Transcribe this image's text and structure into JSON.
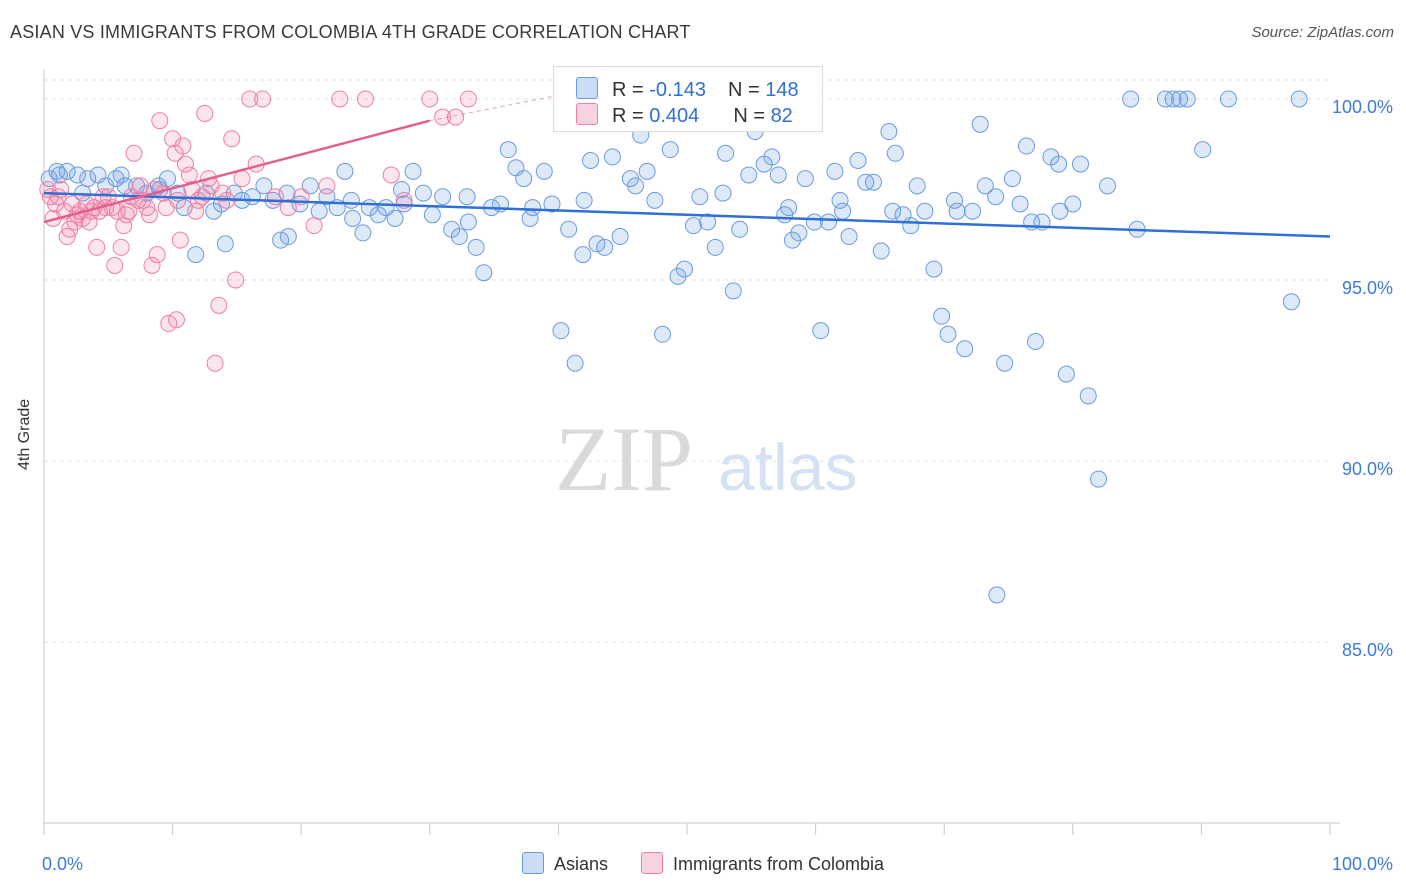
{
  "header": {
    "title": "ASIAN VS IMMIGRANTS FROM COLOMBIA 4TH GRADE CORRELATION CHART",
    "source": "Source: ZipAtlas.com"
  },
  "legend_box": {
    "rows": [
      {
        "r_label": "R = ",
        "r_value": "-0.143",
        "n_label": "N = ",
        "n_value": "148"
      },
      {
        "r_label": "R = ",
        "r_value": "0.404",
        "n_label": "N = ",
        "n_value": "82"
      }
    ]
  },
  "colors": {
    "asians": "#6a9be0",
    "asians_fill": "rgba(106,155,224,0.22)",
    "colombia": "#ee7fa5",
    "colombia_fill": "rgba(238,127,165,0.20)",
    "asians_line": "#2f6fd6",
    "colombia_line": "#e35d8d",
    "tick_text": "#3d7bd9"
  },
  "chart_data": {
    "type": "scatter",
    "title": "ASIAN VS IMMIGRANTS FROM COLOMBIA 4TH GRADE CORRELATION CHART",
    "xlabel": "",
    "ylabel": "4th Grade",
    "xlim": [
      0,
      100
    ],
    "ylim": [
      80,
      100.8
    ],
    "x_tick_labels": [
      "0.0%",
      "100.0%"
    ],
    "y_ticks": [
      85,
      90,
      95,
      100
    ],
    "y_tick_labels": [
      "85.0%",
      "90.0%",
      "95.0%",
      "100.0%"
    ],
    "grid": true,
    "legend": "bottom-center",
    "watermark": "ZIPatlas",
    "series": [
      {
        "name": "Asians",
        "r": -0.143,
        "n": 148,
        "trend": {
          "x": [
            0,
            100
          ],
          "y": [
            97.4,
            96.2
          ]
        },
        "points": [
          [
            0.4,
            97.8
          ],
          [
            1.2,
            97.9
          ],
          [
            1.8,
            98.0
          ],
          [
            2.6,
            97.9
          ],
          [
            3.4,
            97.8
          ],
          [
            4.2,
            97.9
          ],
          [
            4.8,
            97.6
          ],
          [
            5.6,
            97.8
          ],
          [
            6.3,
            97.6
          ],
          [
            7.2,
            97.6
          ],
          [
            8.0,
            97.4
          ],
          [
            8.9,
            97.6
          ],
          [
            9.6,
            97.8
          ],
          [
            10.4,
            97.4
          ],
          [
            10.9,
            97.0
          ],
          [
            11.8,
            95.7
          ],
          [
            12.6,
            97.4
          ],
          [
            13.2,
            96.9
          ],
          [
            14.1,
            96.0
          ],
          [
            14.8,
            97.4
          ],
          [
            15.4,
            97.2
          ],
          [
            16.2,
            97.3
          ],
          [
            17.1,
            97.6
          ],
          [
            17.8,
            97.2
          ],
          [
            18.4,
            96.1
          ],
          [
            19.0,
            96.2
          ],
          [
            19.9,
            97.1
          ],
          [
            20.7,
            97.6
          ],
          [
            21.4,
            96.9
          ],
          [
            22.0,
            97.3
          ],
          [
            22.8,
            97.0
          ],
          [
            23.4,
            98.0
          ],
          [
            24.0,
            96.7
          ],
          [
            24.8,
            96.3
          ],
          [
            25.3,
            97.0
          ],
          [
            26.0,
            96.8
          ],
          [
            26.6,
            97.0
          ],
          [
            27.3,
            96.7
          ],
          [
            28.0,
            97.1
          ],
          [
            28.7,
            98.0
          ],
          [
            29.5,
            97.4
          ],
          [
            30.2,
            96.8
          ],
          [
            31.0,
            97.3
          ],
          [
            31.7,
            96.4
          ],
          [
            32.3,
            96.2
          ],
          [
            32.9,
            97.3
          ],
          [
            33.6,
            95.9
          ],
          [
            34.2,
            95.2
          ],
          [
            34.8,
            97.0
          ],
          [
            35.5,
            97.1
          ],
          [
            36.1,
            98.6
          ],
          [
            36.7,
            98.1
          ],
          [
            37.3,
            97.8
          ],
          [
            38.0,
            97.0
          ],
          [
            38.9,
            98.0
          ],
          [
            39.5,
            97.1
          ],
          [
            40.2,
            93.6
          ],
          [
            40.8,
            96.4
          ],
          [
            41.3,
            92.7
          ],
          [
            41.9,
            95.7
          ],
          [
            42.5,
            98.3
          ],
          [
            43.0,
            96.0
          ],
          [
            43.6,
            95.9
          ],
          [
            44.2,
            98.4
          ],
          [
            44.8,
            96.2
          ],
          [
            45.6,
            97.8
          ],
          [
            46.4,
            99.0
          ],
          [
            46.9,
            98.0
          ],
          [
            47.5,
            97.2
          ],
          [
            48.1,
            93.5
          ],
          [
            48.7,
            98.6
          ],
          [
            49.3,
            95.1
          ],
          [
            49.8,
            95.3
          ],
          [
            50.5,
            96.5
          ],
          [
            51.0,
            97.3
          ],
          [
            51.6,
            96.6
          ],
          [
            52.2,
            95.9
          ],
          [
            53.0,
            98.5
          ],
          [
            53.6,
            94.7
          ],
          [
            54.1,
            96.4
          ],
          [
            54.8,
            97.9
          ],
          [
            55.3,
            99.1
          ],
          [
            56.0,
            98.2
          ],
          [
            56.6,
            98.4
          ],
          [
            57.1,
            97.9
          ],
          [
            57.6,
            96.8
          ],
          [
            58.2,
            96.1
          ],
          [
            58.7,
            96.3
          ],
          [
            59.2,
            97.8
          ],
          [
            59.9,
            96.6
          ],
          [
            60.4,
            93.6
          ],
          [
            61.0,
            96.6
          ],
          [
            61.5,
            98.0
          ],
          [
            62.1,
            96.9
          ],
          [
            62.6,
            96.2
          ],
          [
            63.3,
            98.3
          ],
          [
            63.9,
            97.7
          ],
          [
            64.5,
            97.7
          ],
          [
            65.1,
            95.8
          ],
          [
            65.7,
            99.1
          ],
          [
            66.2,
            98.5
          ],
          [
            66.8,
            96.8
          ],
          [
            67.4,
            96.5
          ],
          [
            67.9,
            97.6
          ],
          [
            68.5,
            96.9
          ],
          [
            69.2,
            95.3
          ],
          [
            69.8,
            94.0
          ],
          [
            70.3,
            93.5
          ],
          [
            71.0,
            96.9
          ],
          [
            71.6,
            93.1
          ],
          [
            72.2,
            96.9
          ],
          [
            72.8,
            99.3
          ],
          [
            73.2,
            97.6
          ],
          [
            74.1,
            86.3
          ],
          [
            74.7,
            92.7
          ],
          [
            75.3,
            97.8
          ],
          [
            75.9,
            97.1
          ],
          [
            76.4,
            98.7
          ],
          [
            77.1,
            93.3
          ],
          [
            77.6,
            96.6
          ],
          [
            78.3,
            98.4
          ],
          [
            78.9,
            98.2
          ],
          [
            79.5,
            92.4
          ],
          [
            80.0,
            97.1
          ],
          [
            80.6,
            98.2
          ],
          [
            81.2,
            91.8
          ],
          [
            82.0,
            89.5
          ],
          [
            82.7,
            97.6
          ],
          [
            84.5,
            100.0
          ],
          [
            87.2,
            100.0
          ],
          [
            87.8,
            100.0
          ],
          [
            88.3,
            100.0
          ],
          [
            88.9,
            100.0
          ],
          [
            90.1,
            98.6
          ],
          [
            92.1,
            100.0
          ],
          [
            97.0,
            94.4
          ],
          [
            97.6,
            100.0
          ],
          [
            1.0,
            98.0
          ],
          [
            3.0,
            97.4
          ],
          [
            6.0,
            97.9
          ],
          [
            9.0,
            97.5
          ],
          [
            13.8,
            97.1
          ],
          [
            18.9,
            97.4
          ],
          [
            23.9,
            97.2
          ],
          [
            27.8,
            97.5
          ],
          [
            33.0,
            96.6
          ],
          [
            37.8,
            96.7
          ],
          [
            42.0,
            97.2
          ],
          [
            46.0,
            97.6
          ],
          [
            52.8,
            97.4
          ],
          [
            57.9,
            97.0
          ],
          [
            61.9,
            97.2
          ],
          [
            66.0,
            96.9
          ],
          [
            70.8,
            97.2
          ],
          [
            74.0,
            97.3
          ],
          [
            76.8,
            96.6
          ],
          [
            79.0,
            96.9
          ],
          [
            85.0,
            96.4
          ]
        ]
      },
      {
        "name": "Immigrants from Colombia",
        "r": 0.404,
        "n": 82,
        "trend": {
          "x": [
            0,
            30,
            40
          ],
          "y": [
            96.6,
            99.4,
            100.1
          ]
        },
        "points": [
          [
            0.3,
            97.5
          ],
          [
            0.5,
            97.3
          ],
          [
            0.7,
            96.7
          ],
          [
            0.9,
            97.1
          ],
          [
            1.1,
            97.3
          ],
          [
            1.3,
            97.5
          ],
          [
            1.6,
            96.9
          ],
          [
            1.8,
            96.2
          ],
          [
            2.0,
            96.4
          ],
          [
            2.2,
            97.1
          ],
          [
            2.4,
            96.6
          ],
          [
            2.6,
            96.8
          ],
          [
            2.8,
            96.9
          ],
          [
            3.0,
            96.7
          ],
          [
            3.3,
            97.1
          ],
          [
            3.5,
            96.6
          ],
          [
            3.7,
            96.9
          ],
          [
            3.9,
            97.0
          ],
          [
            4.1,
            95.9
          ],
          [
            4.3,
            96.9
          ],
          [
            4.6,
            97.3
          ],
          [
            4.8,
            97.0
          ],
          [
            5.0,
            97.3
          ],
          [
            5.3,
            97.0
          ],
          [
            5.5,
            95.4
          ],
          [
            5.7,
            96.9
          ],
          [
            6.0,
            95.9
          ],
          [
            6.2,
            96.5
          ],
          [
            6.4,
            96.8
          ],
          [
            6.6,
            96.9
          ],
          [
            6.8,
            97.3
          ],
          [
            7.0,
            98.5
          ],
          [
            7.3,
            97.2
          ],
          [
            7.5,
            97.6
          ],
          [
            7.7,
            97.2
          ],
          [
            8.0,
            97.0
          ],
          [
            8.2,
            96.8
          ],
          [
            8.4,
            95.4
          ],
          [
            8.6,
            97.5
          ],
          [
            8.8,
            95.7
          ],
          [
            9.0,
            99.4
          ],
          [
            9.3,
            97.4
          ],
          [
            9.5,
            97.0
          ],
          [
            9.7,
            93.8
          ],
          [
            10.0,
            98.9
          ],
          [
            10.2,
            98.5
          ],
          [
            10.4,
            97.2
          ],
          [
            10.6,
            96.1
          ],
          [
            10.8,
            98.7
          ],
          [
            11.0,
            98.2
          ],
          [
            11.3,
            97.9
          ],
          [
            11.5,
            97.5
          ],
          [
            11.8,
            96.9
          ],
          [
            12.0,
            97.2
          ],
          [
            12.3,
            97.3
          ],
          [
            12.5,
            99.6
          ],
          [
            12.8,
            97.8
          ],
          [
            13.0,
            97.6
          ],
          [
            13.3,
            92.7
          ],
          [
            13.6,
            94.3
          ],
          [
            13.9,
            97.4
          ],
          [
            14.2,
            97.2
          ],
          [
            14.6,
            98.9
          ],
          [
            14.9,
            95.0
          ],
          [
            15.4,
            97.8
          ],
          [
            16.0,
            100.0
          ],
          [
            16.5,
            98.2
          ],
          [
            17.0,
            100.0
          ],
          [
            18.0,
            97.3
          ],
          [
            19.0,
            97.0
          ],
          [
            20.0,
            97.3
          ],
          [
            21.0,
            96.5
          ],
          [
            22.0,
            97.6
          ],
          [
            23.0,
            100.0
          ],
          [
            25.0,
            100.0
          ],
          [
            27.0,
            97.9
          ],
          [
            28.0,
            97.2
          ],
          [
            30.0,
            100.0
          ],
          [
            31.0,
            99.5
          ],
          [
            32.0,
            99.5
          ],
          [
            10.3,
            93.9
          ],
          [
            33.0,
            100.0
          ]
        ]
      }
    ]
  },
  "bottom_legend": {
    "items": [
      {
        "label": "Asians"
      },
      {
        "label": "Immigrants from Colombia"
      }
    ]
  }
}
